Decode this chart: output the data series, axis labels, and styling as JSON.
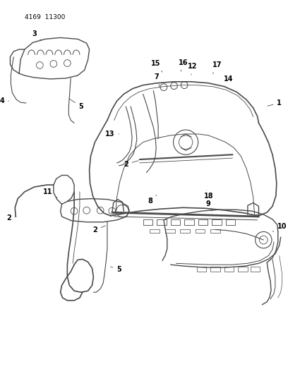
{
  "title": "4169  11300",
  "background_color": "#ffffff",
  "line_color": "#4a4a4a",
  "text_color": "#000000",
  "fig_width": 4.08,
  "fig_height": 5.33,
  "dpi": 100
}
